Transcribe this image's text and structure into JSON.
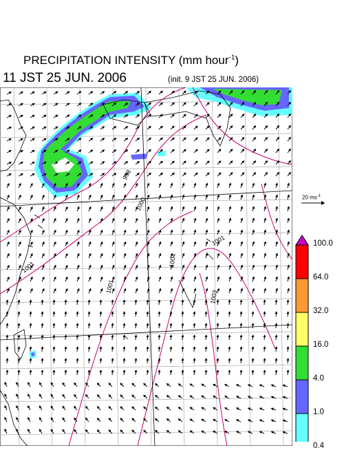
{
  "header": {
    "title_main": "PRECIPITATION INTENSITY (mm hour",
    "title_exp": "-1",
    "title_end": ")",
    "valid_time": "11 JST 25 JUN. 2006",
    "init_time": "(init. 9 JST 25 JUN. 2006)"
  },
  "wind_reference": {
    "label": "20 ms",
    "exp": "-1"
  },
  "legend": {
    "levels": [
      "100.0",
      "64.0",
      "32.0",
      "16.0",
      "4.0",
      "1.0",
      "0.4"
    ],
    "colors": [
      "#ff0000",
      "#ff9933",
      "#ffff66",
      "#33dd33",
      "#6666ff",
      "#66ffff"
    ],
    "top_color": "#cc00cc"
  },
  "map": {
    "isobar_labels": [
      "1001",
      "998",
      "1001",
      "1000",
      "1004",
      "1003",
      "1001"
    ],
    "colors": {
      "isobar": "#c8006e",
      "coast": "#000000",
      "grid": "#aaaaaa",
      "rain_light": "#66ffff",
      "rain_moderate": "#6666ff",
      "rain_heavy": "#33dd33"
    }
  }
}
